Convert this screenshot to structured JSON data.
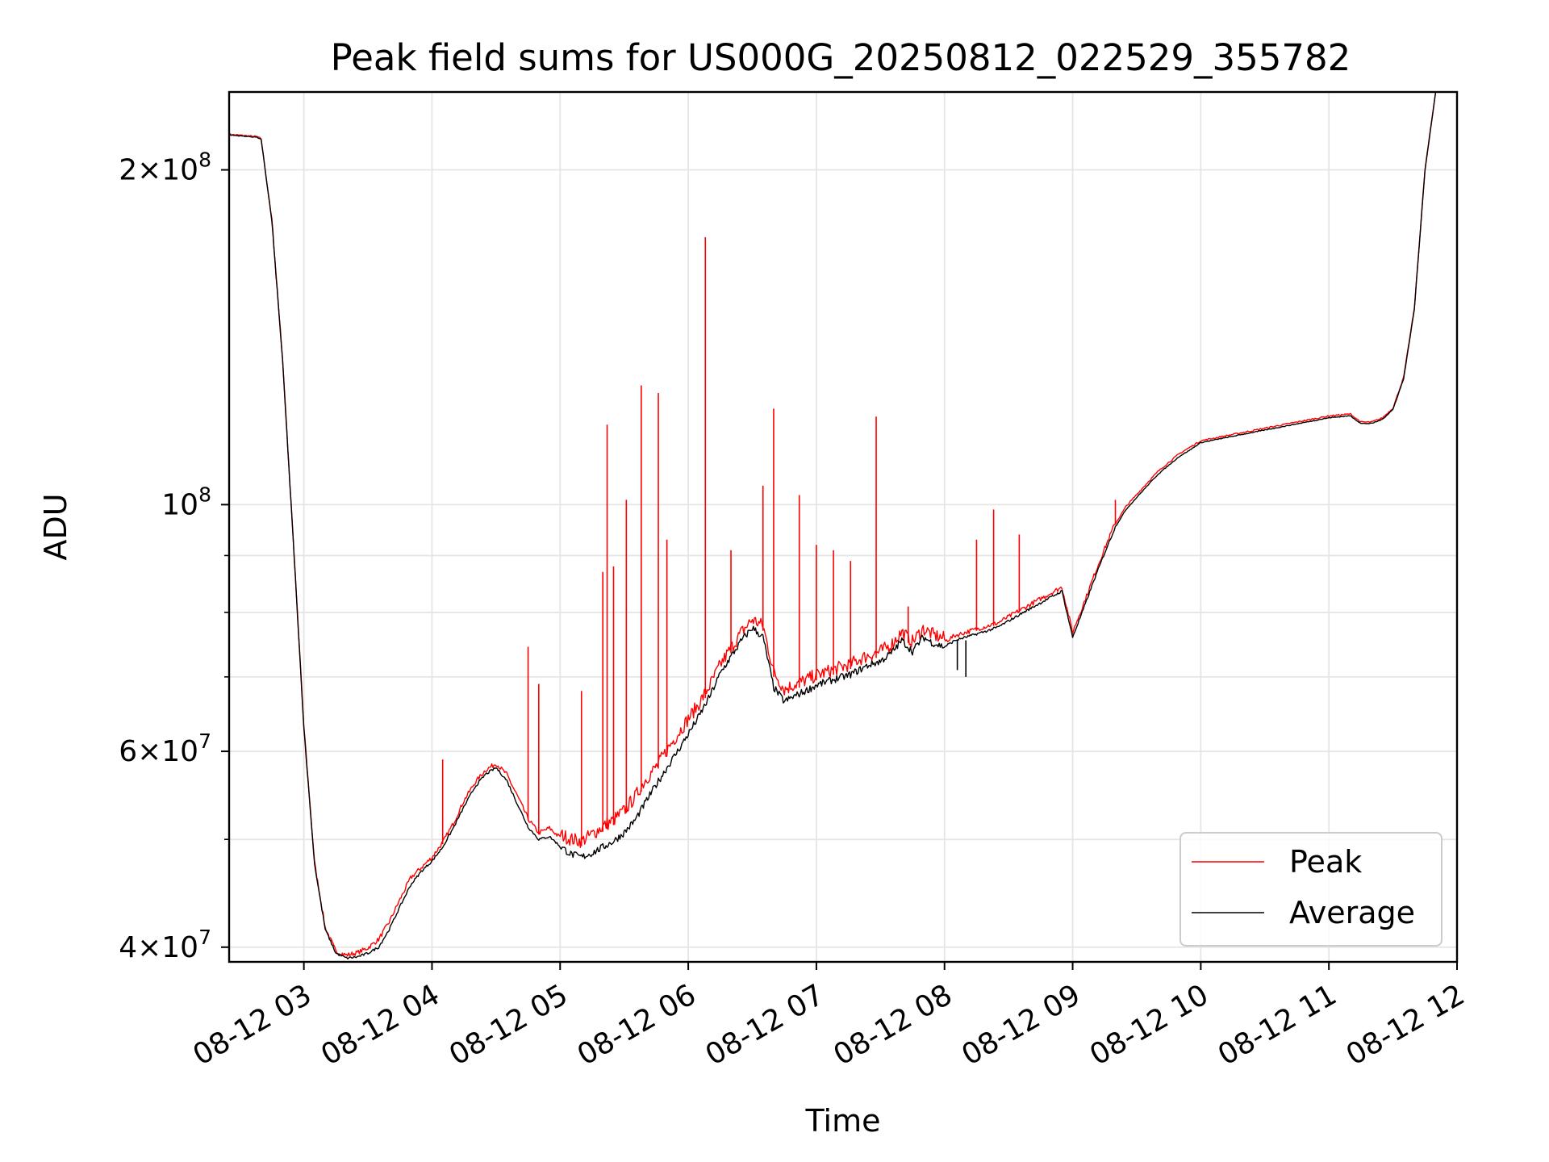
{
  "chart_data": {
    "type": "line",
    "title": "Peak field sums for US000G_20250812_022529_355782",
    "xlabel": "Time",
    "ylabel": "ADU",
    "yscale": "log",
    "xlim": [
      "08-12 02:25",
      "08-12 12:00"
    ],
    "ylim": [
      38800000,
      235000000
    ],
    "x_ticks": [
      "08-12 03",
      "08-12 04",
      "08-12 05",
      "08-12 06",
      "08-12 07",
      "08-12 08",
      "08-12 09",
      "08-12 10",
      "08-12 11",
      "08-12 12"
    ],
    "y_ticks_major": [
      {
        "value": 40000000,
        "base": "4",
        "exp": "7"
      },
      {
        "value": 60000000,
        "base": "6",
        "exp": "7"
      },
      {
        "value": 100000000,
        "base": "",
        "exp": "8"
      },
      {
        "value": 200000000,
        "base": "2",
        "exp": "8"
      }
    ],
    "y_ticks_minor": [
      50000000,
      70000000,
      80000000,
      90000000
    ],
    "grid": true,
    "legend_position": "lower-right",
    "colors": {
      "peak": "#ff0000",
      "average": "#000000"
    },
    "series": [
      {
        "name": "Peak",
        "x": [
          "08-12 02:25",
          "08-12 02:38",
          "08-12 02:40",
          "08-12 02:45",
          "08-12 02:50",
          "08-12 02:55",
          "08-12 03:00",
          "08-12 03:05",
          "08-12 03:10",
          "08-12 03:15",
          "08-12 03:20",
          "08-12 03:25",
          "08-12 03:30",
          "08-12 03:35",
          "08-12 03:40",
          "08-12 03:45",
          "08-12 03:50",
          "08-12 03:55",
          "08-12 04:00",
          "08-12 04:05",
          "08-12 04:10",
          "08-12 04:15",
          "08-12 04:20",
          "08-12 04:25",
          "08-12 04:30",
          "08-12 04:35",
          "08-12 04:40",
          "08-12 04:45",
          "08-12 04:50",
          "08-12 04:55",
          "08-12 05:00",
          "08-12 05:05",
          "08-12 05:10",
          "08-12 05:15",
          "08-12 05:20",
          "08-12 05:25",
          "08-12 05:30",
          "08-12 05:35",
          "08-12 05:40",
          "08-12 05:45",
          "08-12 05:50",
          "08-12 05:55",
          "08-12 06:00",
          "08-12 06:05",
          "08-12 06:10",
          "08-12 06:15",
          "08-12 06:20",
          "08-12 06:25",
          "08-12 06:30",
          "08-12 06:35",
          "08-12 06:40",
          "08-12 06:45",
          "08-12 06:50",
          "08-12 06:55",
          "08-12 07:00",
          "08-12 07:05",
          "08-12 07:10",
          "08-12 07:15",
          "08-12 07:20",
          "08-12 07:25",
          "08-12 07:30",
          "08-12 07:35",
          "08-12 07:40",
          "08-12 07:45",
          "08-12 07:50",
          "08-12 07:55",
          "08-12 08:00",
          "08-12 08:05",
          "08-12 08:10",
          "08-12 08:15",
          "08-12 08:20",
          "08-12 08:25",
          "08-12 08:30",
          "08-12 08:35",
          "08-12 08:40",
          "08-12 08:45",
          "08-12 08:50",
          "08-12 08:55",
          "08-12 09:00",
          "08-12 09:05",
          "08-12 09:10",
          "08-12 09:15",
          "08-12 09:20",
          "08-12 09:25",
          "08-12 09:30",
          "08-12 09:35",
          "08-12 09:40",
          "08-12 09:45",
          "08-12 09:50",
          "08-12 09:55",
          "08-12 10:00",
          "08-12 10:10",
          "08-12 10:20",
          "08-12 10:30",
          "08-12 10:40",
          "08-12 10:50",
          "08-12 11:00",
          "08-12 11:10",
          "08-12 11:15",
          "08-12 11:20",
          "08-12 11:25",
          "08-12 11:30",
          "08-12 11:35",
          "08-12 11:40",
          "08-12 11:45",
          "08-12 11:50",
          "08-12 11:55",
          "08-12 12:00"
        ],
        "values": [
          215000000,
          214000000,
          213000000,
          180000000,
          135000000,
          93000000,
          63000000,
          47500000,
          41500000,
          39500000,
          39200000,
          39400000,
          39800000,
          40500000,
          42000000,
          44000000,
          46000000,
          47000000,
          48000000,
          49500000,
          51500000,
          54000000,
          56000000,
          57500000,
          58300000,
          57000000,
          54500000,
          52000000,
          50500000,
          51000000,
          50000000,
          49500000,
          49300000,
          50000000,
          50800000,
          51500000,
          52500000,
          54000000,
          56000000,
          57500000,
          59500000,
          61500000,
          63500000,
          65500000,
          68000000,
          71000000,
          73500000,
          76000000,
          78000000,
          77000000,
          70000000,
          67500000,
          68200000,
          68800000,
          69500000,
          70000000,
          70500000,
          71000000,
          71800000,
          72500000,
          73000000,
          74000000,
          76000000,
          74500000,
          76500000,
          75500000,
          75000000,
          76000000,
          76500000,
          77000000,
          77500000,
          78000000,
          79000000,
          80000000,
          81000000,
          82000000,
          83000000,
          84000000,
          76500000,
          81000000,
          86000000,
          91000000,
          96000000,
          99500000,
          102000000,
          104500000,
          107000000,
          109000000,
          111000000,
          112500000,
          114000000,
          115000000,
          116000000,
          117000000,
          118000000,
          119000000,
          120000000,
          120500000,
          118500000,
          118500000,
          119500000,
          122000000,
          130000000,
          150000000,
          200000000,
          235000000,
          235000000,
          235000000
        ]
      },
      {
        "name": "Average",
        "x": [
          "08-12 02:25",
          "08-12 02:38",
          "08-12 02:40",
          "08-12 02:45",
          "08-12 02:50",
          "08-12 02:55",
          "08-12 03:00",
          "08-12 03:05",
          "08-12 03:10",
          "08-12 03:15",
          "08-12 03:20",
          "08-12 03:25",
          "08-12 03:30",
          "08-12 03:35",
          "08-12 03:40",
          "08-12 03:45",
          "08-12 03:50",
          "08-12 03:55",
          "08-12 04:00",
          "08-12 04:05",
          "08-12 04:10",
          "08-12 04:15",
          "08-12 04:20",
          "08-12 04:25",
          "08-12 04:30",
          "08-12 04:35",
          "08-12 04:40",
          "08-12 04:45",
          "08-12 04:50",
          "08-12 04:55",
          "08-12 05:00",
          "08-12 05:05",
          "08-12 05:10",
          "08-12 05:15",
          "08-12 05:20",
          "08-12 05:25",
          "08-12 05:30",
          "08-12 05:35",
          "08-12 05:40",
          "08-12 05:45",
          "08-12 05:50",
          "08-12 05:55",
          "08-12 06:00",
          "08-12 06:05",
          "08-12 06:10",
          "08-12 06:15",
          "08-12 06:20",
          "08-12 06:25",
          "08-12 06:30",
          "08-12 06:35",
          "08-12 06:40",
          "08-12 06:45",
          "08-12 06:50",
          "08-12 06:55",
          "08-12 07:00",
          "08-12 07:05",
          "08-12 07:10",
          "08-12 07:15",
          "08-12 07:20",
          "08-12 07:25",
          "08-12 07:30",
          "08-12 07:35",
          "08-12 07:40",
          "08-12 07:45",
          "08-12 07:50",
          "08-12 07:55",
          "08-12 08:00",
          "08-12 08:05",
          "08-12 08:10",
          "08-12 08:15",
          "08-12 08:20",
          "08-12 08:25",
          "08-12 08:30",
          "08-12 08:35",
          "08-12 08:40",
          "08-12 08:45",
          "08-12 08:50",
          "08-12 08:55",
          "08-12 09:00",
          "08-12 09:05",
          "08-12 09:10",
          "08-12 09:15",
          "08-12 09:20",
          "08-12 09:25",
          "08-12 09:30",
          "08-12 09:35",
          "08-12 09:40",
          "08-12 09:45",
          "08-12 09:50",
          "08-12 09:55",
          "08-12 10:00",
          "08-12 10:10",
          "08-12 10:20",
          "08-12 10:30",
          "08-12 10:40",
          "08-12 10:50",
          "08-12 11:00",
          "08-12 11:10",
          "08-12 11:15",
          "08-12 11:20",
          "08-12 11:25",
          "08-12 11:30",
          "08-12 11:35",
          "08-12 11:40",
          "08-12 11:45",
          "08-12 11:50",
          "08-12 11:55",
          "08-12 12:00"
        ],
        "values": [
          215000000,
          214000000,
          213000000,
          180000000,
          135000000,
          93000000,
          63000000,
          47500000,
          41500000,
          39500000,
          39100000,
          39200000,
          39500000,
          40000000,
          41500000,
          43500000,
          45500000,
          46800000,
          47800000,
          49200000,
          51200000,
          53500000,
          55700000,
          57200000,
          58000000,
          56500000,
          53800000,
          51300000,
          50000000,
          50300000,
          49300000,
          48500000,
          48200000,
          48600000,
          49200000,
          49800000,
          50700000,
          52000000,
          54000000,
          56000000,
          58000000,
          60000000,
          62200000,
          64500000,
          67200000,
          70500000,
          73000000,
          75500000,
          77500000,
          76000000,
          68500000,
          66500000,
          67300000,
          68000000,
          68800000,
          69300000,
          69800000,
          70200000,
          71000000,
          71800000,
          72300000,
          73500000,
          75500000,
          73800000,
          76000000,
          75000000,
          74500000,
          75500000,
          76000000,
          76500000,
          77000000,
          77600000,
          78600000,
          79600000,
          80600000,
          81600000,
          82600000,
          83600000,
          76000000,
          80500000,
          85500000,
          90500000,
          95500000,
          99000000,
          101500000,
          104000000,
          106500000,
          108500000,
          110500000,
          112000000,
          113700000,
          114700000,
          115700000,
          116700000,
          117700000,
          118700000,
          119700000,
          120200000,
          118300000,
          118300000,
          119300000,
          121800000,
          129800000,
          149800000,
          199800000,
          235000000,
          235000000,
          235000000
        ]
      }
    ],
    "peak_spikes": [
      {
        "x": "08-12 04:05",
        "value": 59000000
      },
      {
        "x": "08-12 04:45",
        "value": 74500000
      },
      {
        "x": "08-12 04:50",
        "value": 69000000
      },
      {
        "x": "08-12 05:10",
        "value": 68000000
      },
      {
        "x": "08-12 05:20",
        "value": 87000000
      },
      {
        "x": "08-12 05:22",
        "value": 118000000
      },
      {
        "x": "08-12 05:25",
        "value": 88000000
      },
      {
        "x": "08-12 05:31",
        "value": 101000000
      },
      {
        "x": "08-12 05:38",
        "value": 128000000
      },
      {
        "x": "08-12 05:46",
        "value": 126000000
      },
      {
        "x": "08-12 05:50",
        "value": 93000000
      },
      {
        "x": "08-12 06:08",
        "value": 174000000
      },
      {
        "x": "08-12 06:20",
        "value": 91000000
      },
      {
        "x": "08-12 06:35",
        "value": 104000000
      },
      {
        "x": "08-12 06:40",
        "value": 122000000
      },
      {
        "x": "08-12 06:52",
        "value": 102000000
      },
      {
        "x": "08-12 07:00",
        "value": 92000000
      },
      {
        "x": "08-12 07:08",
        "value": 91000000
      },
      {
        "x": "08-12 07:16",
        "value": 89000000
      },
      {
        "x": "08-12 07:28",
        "value": 120000000
      },
      {
        "x": "08-12 07:43",
        "value": 81000000
      },
      {
        "x": "08-12 08:15",
        "value": 93000000
      },
      {
        "x": "08-12 08:23",
        "value": 99000000
      },
      {
        "x": "08-12 08:35",
        "value": 94000000
      },
      {
        "x": "08-12 09:20",
        "value": 101000000
      }
    ],
    "average_dips": [
      {
        "x": "08-12 08:06",
        "value": 71000000
      },
      {
        "x": "08-12 08:10",
        "value": 70000000
      }
    ],
    "legend": [
      {
        "label": "Peak",
        "color": "#ff0000"
      },
      {
        "label": "Average",
        "color": "#000000"
      }
    ]
  }
}
